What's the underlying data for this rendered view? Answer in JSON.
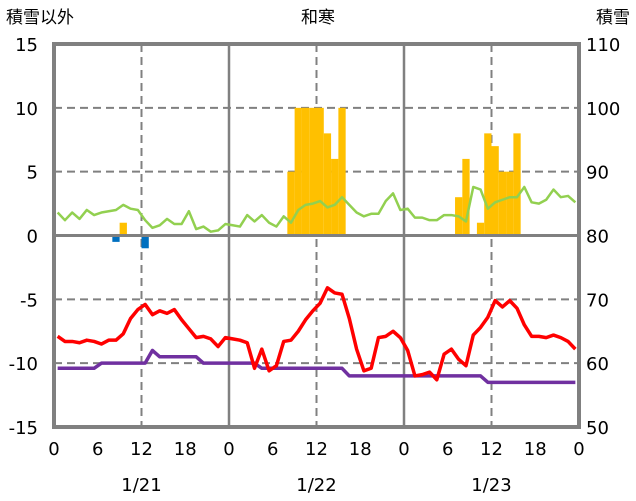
{
  "chart_data": {
    "type": "bar+line",
    "title": "和寒",
    "ylabel_left": "積雪以外",
    "ylabel_right": "積雪",
    "ylim_left": [
      -15,
      15
    ],
    "ylim_right": [
      50,
      110
    ],
    "yticks_left": [
      "15",
      "10",
      "5",
      "0",
      "-5",
      "-10",
      "-15"
    ],
    "yticks_right": [
      "110",
      "100",
      "90",
      "80",
      "70",
      "60",
      "50"
    ],
    "xlim_hours": [
      0,
      72
    ],
    "xticks": [
      "0",
      "6",
      "12",
      "18",
      "0",
      "6",
      "12",
      "18",
      "0",
      "6",
      "12",
      "18",
      "0"
    ],
    "dates": [
      "1/21",
      "1/22",
      "1/23"
    ],
    "grid": true,
    "colors": {
      "bars_pos": "#ffc000",
      "bars_neg": "#0070c0",
      "green": "#92d050",
      "red": "#ff0000",
      "purple": "#7030a0",
      "axis": "#808080"
    },
    "bars_pos": [
      [
        9,
        1
      ],
      [
        32,
        5
      ],
      [
        33,
        10
      ],
      [
        34,
        10
      ],
      [
        35,
        10
      ],
      [
        36,
        10
      ],
      [
        37,
        8
      ],
      [
        38,
        6
      ],
      [
        39,
        10
      ],
      [
        55,
        3
      ],
      [
        56,
        6
      ],
      [
        58,
        1
      ],
      [
        59,
        8
      ],
      [
        60,
        7
      ],
      [
        61,
        5
      ],
      [
        62,
        5
      ],
      [
        63,
        8
      ]
    ],
    "bars_neg": [
      [
        8,
        -0.5
      ],
      [
        12,
        -1.0
      ]
    ],
    "green": [
      1.8,
      1.2,
      1.8,
      1.3,
      2.0,
      1.6,
      1.8,
      1.9,
      2.0,
      2.4,
      2.1,
      2.0,
      1.2,
      0.6,
      0.8,
      1.3,
      0.9,
      0.9,
      1.9,
      0.5,
      0.7,
      0.3,
      0.4,
      0.9,
      0.8,
      0.7,
      1.6,
      1.1,
      1.6,
      1.0,
      0.7,
      1.5,
      1.0,
      2.0,
      2.4,
      2.5,
      2.7,
      2.2,
      2.4,
      3.0,
      2.4,
      1.8,
      1.5,
      1.7,
      1.7,
      2.7,
      3.3,
      2.0,
      2.1,
      1.4,
      1.4,
      1.2,
      1.2,
      1.6,
      1.6,
      1.5,
      1.1,
      3.8,
      3.6,
      2.1,
      2.6,
      2.8,
      3.0,
      3.0,
      3.8,
      2.6,
      2.5,
      2.8,
      3.6,
      3.0,
      3.1,
      2.6
    ],
    "red": [
      -7.9,
      -8.3,
      -8.3,
      -8.4,
      -8.2,
      -8.3,
      -8.5,
      -8.2,
      -8.2,
      -7.7,
      -6.5,
      -5.8,
      -5.4,
      -6.2,
      -5.9,
      -6.1,
      -5.8,
      -6.6,
      -7.3,
      -8.0,
      -7.9,
      -8.1,
      -8.7,
      -8.0,
      -8.1,
      -8.2,
      -8.4,
      -10.4,
      -8.9,
      -10.6,
      -10.2,
      -8.3,
      -8.2,
      -7.5,
      -6.6,
      -5.9,
      -5.3,
      -4.1,
      -4.5,
      -4.6,
      -6.5,
      -8.9,
      -10.6,
      -10.4,
      -8.0,
      -7.9,
      -7.5,
      -8.0,
      -9.0,
      -11.0,
      -10.9,
      -10.7,
      -11.3,
      -9.3,
      -8.9,
      -9.7,
      -10.2,
      -7.8,
      -7.2,
      -6.4,
      -5.1,
      -5.6,
      -5.1,
      -5.7,
      -7.0,
      -7.9,
      -7.9,
      -8.0,
      -7.8,
      -8.0,
      -8.3,
      -8.9
    ],
    "purple": [
      -10.4,
      -10.4,
      -10.4,
      -10.4,
      -10.4,
      -10.4,
      -10.0,
      -10.0,
      -10.0,
      -10.0,
      -10.0,
      -10.0,
      -10.0,
      -9.0,
      -9.5,
      -9.5,
      -9.5,
      -9.5,
      -9.5,
      -9.5,
      -10.0,
      -10.0,
      -10.0,
      -10.0,
      -10.0,
      -10.0,
      -10.0,
      -10.0,
      -10.4,
      -10.4,
      -10.4,
      -10.4,
      -10.4,
      -10.4,
      -10.4,
      -10.4,
      -10.4,
      -10.4,
      -10.4,
      -10.4,
      -11.0,
      -11.0,
      -11.0,
      -11.0,
      -11.0,
      -11.0,
      -11.0,
      -11.0,
      -11.0,
      -11.0,
      -11.0,
      -11.0,
      -11.0,
      -11.0,
      -11.0,
      -11.0,
      -11.0,
      -11.0,
      -11.0,
      -11.5,
      -11.5,
      -11.5,
      -11.5,
      -11.5,
      -11.5,
      -11.5,
      -11.5,
      -11.5,
      -11.5,
      -11.5,
      -11.5,
      -11.5
    ]
  }
}
